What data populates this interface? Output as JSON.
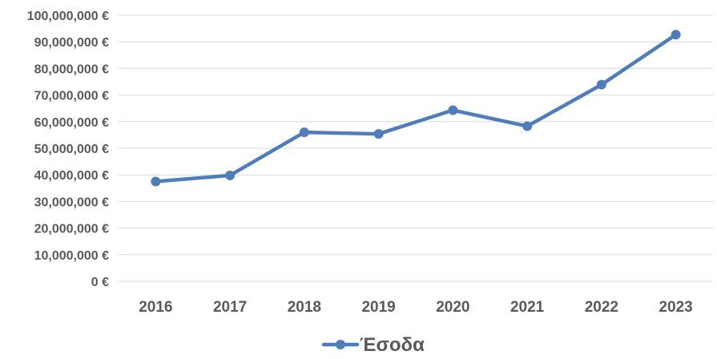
{
  "chart_data": {
    "type": "line",
    "categories": [
      "2016",
      "2017",
      "2018",
      "2019",
      "2020",
      "2021",
      "2022",
      "2023"
    ],
    "series": [
      {
        "name": "Έσοδα",
        "values": [
          37500000,
          39800000,
          56000000,
          55400000,
          64300000,
          58300000,
          73900000,
          92700000
        ],
        "color": "#4f7dba"
      }
    ],
    "ylim": [
      0,
      100000000
    ],
    "yticks": [
      0,
      10000000,
      20000000,
      30000000,
      40000000,
      50000000,
      60000000,
      70000000,
      80000000,
      90000000,
      100000000
    ],
    "ytick_labels": [
      "0 €",
      "10,000,000 €",
      "20,000,000 €",
      "30,000,000 €",
      "40,000,000 €",
      "50,000,000 €",
      "60,000,000 €",
      "70,000,000 €",
      "80,000,000 €",
      "90,000,000 €",
      "100,000,000 €"
    ],
    "grid": true,
    "gridline_color": "#d9d9d9",
    "legend_position": "bottom",
    "title": "",
    "xlabel": "",
    "ylabel": ""
  }
}
